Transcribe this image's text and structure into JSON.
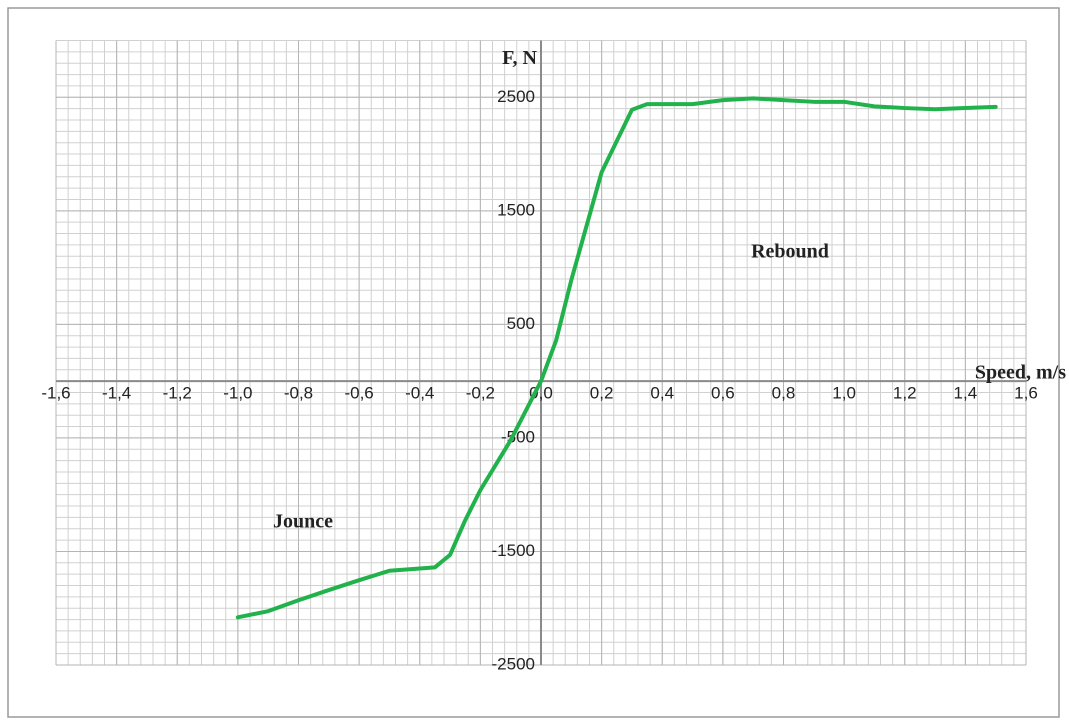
{
  "chart_data": {
    "type": "line",
    "x_label": "Speed, m/s",
    "y_label": "F, N",
    "annotations": [
      "Rebound",
      "Jounce"
    ],
    "x": [
      -1.0,
      -0.9,
      -0.8,
      -0.7,
      -0.6,
      -0.5,
      -0.4,
      -0.35,
      -0.3,
      -0.25,
      -0.2,
      -0.1,
      0,
      0.05,
      0.1,
      0.2,
      0.3,
      0.35,
      0.4,
      0.5,
      0.6,
      0.7,
      0.8,
      0.9,
      1.0,
      1.1,
      1.2,
      1.3,
      1.4,
      1.5
    ],
    "series": [
      {
        "name": "F",
        "color": "#22b24c",
        "values": [
          -2080,
          -2026,
          -1930,
          -1840,
          -1753,
          -1670,
          -1650,
          -1640,
          -1530,
          -1225,
          -960,
          -520,
          0,
          360,
          890,
          1840,
          2390,
          2440,
          2440,
          2440,
          2475,
          2490,
          2475,
          2460,
          2460,
          2420,
          2405,
          2395,
          2405,
          2415
        ]
      }
    ],
    "xlim": [
      -1.6,
      1.6
    ],
    "xticks": [
      {
        "value": -1.6,
        "label": "-1,6"
      },
      {
        "value": -1.4,
        "label": "-1,4"
      },
      {
        "value": -1.2,
        "label": "-1,2"
      },
      {
        "value": -1.0,
        "label": "-1,0"
      },
      {
        "value": -0.8,
        "label": "-0,8"
      },
      {
        "value": -0.6,
        "label": "-0,6"
      },
      {
        "value": -0.4,
        "label": "-0,4"
      },
      {
        "value": -0.2,
        "label": "-0,2"
      },
      {
        "value": 0,
        "label": "0,0"
      },
      {
        "value": 0.2,
        "label": "0,2"
      },
      {
        "value": 0.4,
        "label": "0,4"
      },
      {
        "value": 0.6,
        "label": "0,6"
      },
      {
        "value": 0.8,
        "label": "0,8"
      },
      {
        "value": 1.0,
        "label": "1,0"
      },
      {
        "value": 1.2,
        "label": "1,2"
      },
      {
        "value": 1.4,
        "label": "1,4"
      },
      {
        "value": 1.6,
        "label": "1,6"
      }
    ],
    "ylim": [
      -2500,
      3000
    ],
    "yticks": [
      -2500,
      -1500,
      -500,
      500,
      1500,
      2500
    ],
    "grid": true
  }
}
